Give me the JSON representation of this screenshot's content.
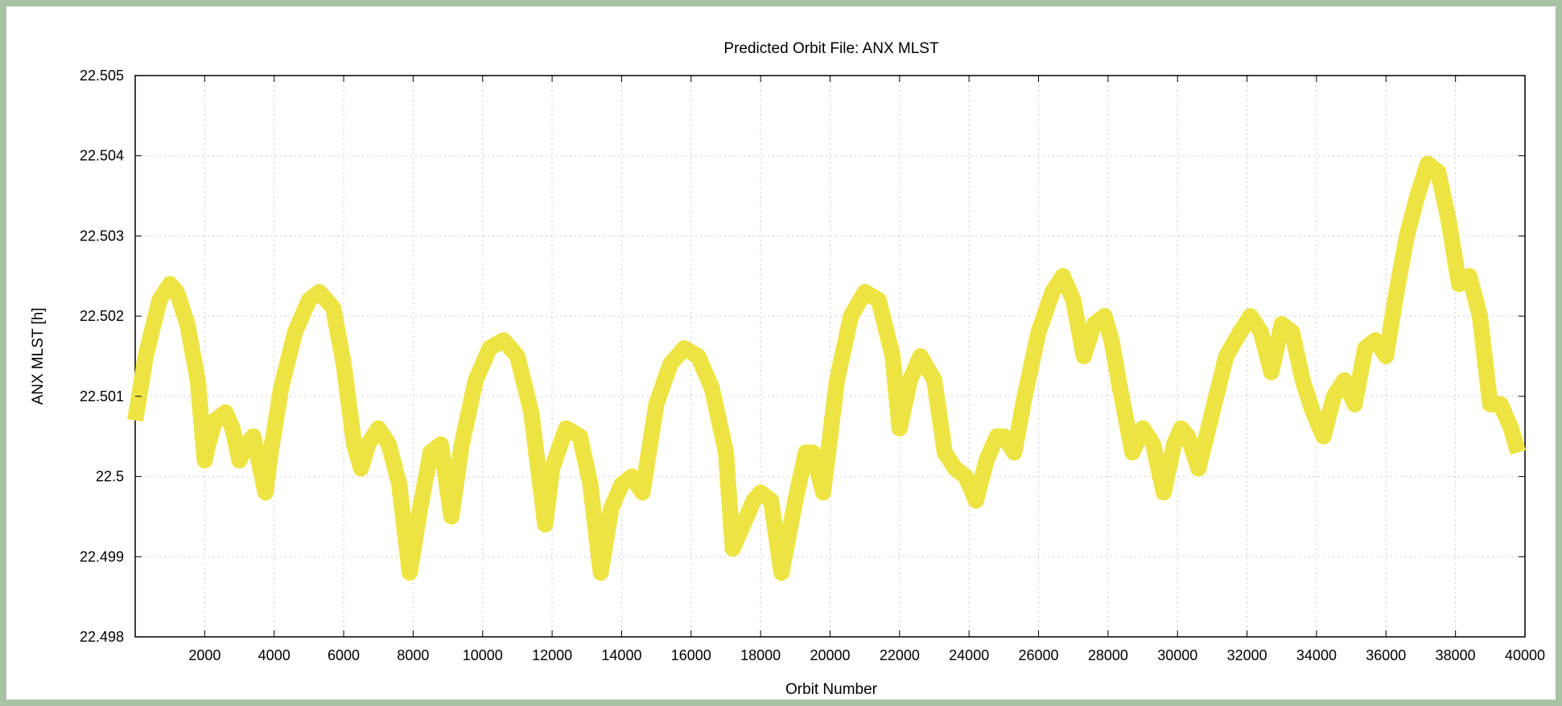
{
  "chart_data": {
    "type": "line",
    "title": "Predicted Orbit File: ANX MLST",
    "xlabel": "Orbit Number",
    "ylabel": "ANX MLST [h]",
    "xlim": [
      0,
      40000
    ],
    "ylim": [
      22.498,
      22.505
    ],
    "grid": true,
    "x_ticks": [
      2000,
      4000,
      6000,
      8000,
      10000,
      12000,
      14000,
      16000,
      18000,
      20000,
      22000,
      24000,
      26000,
      28000,
      30000,
      32000,
      34000,
      36000,
      38000,
      40000
    ],
    "x_tick_labels": [
      "2000",
      "4000",
      "6000",
      "8000",
      "10000",
      "12000",
      "14000",
      "16000",
      "18000",
      "20000",
      "22000",
      "24000",
      "26000",
      "28000",
      "30000",
      "32000",
      "34000",
      "36000",
      "38000",
      "40000"
    ],
    "y_ticks": [
      22.498,
      22.499,
      22.5,
      22.501,
      22.502,
      22.503,
      22.504,
      22.505
    ],
    "y_tick_labels": [
      "22.498",
      "22.499",
      "22.5",
      "22.501",
      "22.502",
      "22.503",
      "22.504",
      "22.505"
    ],
    "series": [
      {
        "color": "#ede443",
        "x": [
          0,
          300,
          700,
          1000,
          1200,
          1500,
          1800,
          2000,
          2100,
          2300,
          2600,
          2800,
          3000,
          3200,
          3400,
          3600,
          3750,
          3900,
          4200,
          4600,
          5000,
          5300,
          5700,
          6000,
          6300,
          6500,
          6700,
          7000,
          7300,
          7600,
          7900,
          8200,
          8500,
          8800,
          9100,
          9400,
          9800,
          10200,
          10600,
          11000,
          11400,
          11800,
          12000,
          12400,
          12800,
          13100,
          13400,
          13700,
          14000,
          14300,
          14600,
          15000,
          15400,
          15800,
          16200,
          16600,
          17000,
          17200,
          17500,
          17800,
          18000,
          18300,
          18600,
          19000,
          19300,
          19500,
          19800,
          20200,
          20600,
          21000,
          21400,
          21800,
          22000,
          22300,
          22600,
          23000,
          23300,
          23600,
          23900,
          24200,
          24500,
          24800,
          25000,
          25300,
          25600,
          26000,
          26400,
          26700,
          27000,
          27300,
          27600,
          27900,
          28100,
          28300,
          28700,
          29000,
          29300,
          29600,
          29900,
          30100,
          30300,
          30600,
          31000,
          31400,
          31800,
          32100,
          32400,
          32700,
          33000,
          33300,
          33600,
          33900,
          34200,
          34500,
          34800,
          35100,
          35400,
          35700,
          36000,
          36300,
          36600,
          36900,
          37200,
          37500,
          37800,
          38100,
          38400,
          38700,
          39000,
          39300,
          39600,
          39800
        ],
        "y": [
          22.5007,
          22.5015,
          22.5022,
          22.5024,
          22.5023,
          22.5019,
          22.5012,
          22.5002,
          22.5004,
          22.5007,
          22.5008,
          22.5006,
          22.5002,
          22.5004,
          22.5005,
          22.5001,
          22.4998,
          22.5003,
          22.5011,
          22.5018,
          22.5022,
          22.5023,
          22.5021,
          22.5014,
          22.5004,
          22.5001,
          22.5004,
          22.5006,
          22.5004,
          22.4999,
          22.4988,
          22.4996,
          22.5003,
          22.5004,
          22.4995,
          22.5004,
          22.5012,
          22.5016,
          22.5017,
          22.5015,
          22.5008,
          22.4994,
          22.5001,
          22.5006,
          22.5005,
          22.4999,
          22.4988,
          22.4996,
          22.4999,
          22.5,
          22.4998,
          22.5009,
          22.5014,
          22.5016,
          22.5015,
          22.5011,
          22.5003,
          22.4991,
          22.4994,
          22.4997,
          22.4998,
          22.4997,
          22.4988,
          22.4997,
          22.5003,
          22.5003,
          22.4998,
          22.5012,
          22.502,
          22.5023,
          22.5022,
          22.5015,
          22.5006,
          22.5012,
          22.5015,
          22.5012,
          22.5003,
          22.5001,
          22.5,
          22.4997,
          22.5002,
          22.5005,
          22.5005,
          22.5003,
          22.501,
          22.5018,
          22.5023,
          22.5025,
          22.5022,
          22.5015,
          22.5019,
          22.502,
          22.5017,
          22.5012,
          22.5003,
          22.5006,
          22.5004,
          22.4998,
          22.5004,
          22.5006,
          22.5005,
          22.5001,
          22.5008,
          22.5015,
          22.5018,
          22.502,
          22.5018,
          22.5013,
          22.5019,
          22.5018,
          22.5012,
          22.5008,
          22.5005,
          22.501,
          22.5012,
          22.5009,
          22.5016,
          22.5017,
          22.5015,
          22.5023,
          22.503,
          22.5035,
          22.5039,
          22.5038,
          22.5032,
          22.5024,
          22.5025,
          22.502,
          22.5009,
          22.5009,
          22.5006,
          22.5003
        ]
      }
    ]
  }
}
